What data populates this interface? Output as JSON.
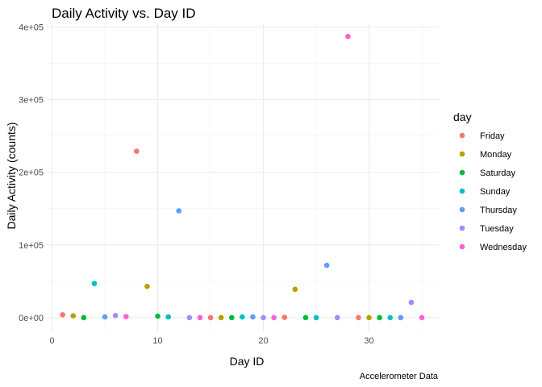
{
  "chart_data": {
    "type": "scatter",
    "title": "Daily Activity vs. Day ID",
    "xlabel": "Day ID",
    "ylabel": "Daily Activity (counts)",
    "caption": "Accelerometer Data",
    "legend_title": "day",
    "legend_position": "right",
    "xlim": [
      -0.5,
      36.6
    ],
    "ylim": [
      -20000,
      405000
    ],
    "x_ticks": [
      0,
      10,
      20,
      30
    ],
    "x_tick_labels": [
      "0",
      "10",
      "20",
      "30"
    ],
    "y_ticks": [
      0,
      100000,
      200000,
      300000,
      400000
    ],
    "y_tick_labels": [
      "0e+00",
      "1e+05",
      "2e+05",
      "3e+05",
      "4e+05"
    ],
    "grid": true,
    "series": [
      {
        "name": "Friday",
        "color": "#F8766D",
        "points": [
          [
            1,
            4000
          ],
          [
            8,
            229000
          ],
          [
            15,
            0
          ],
          [
            22,
            500
          ],
          [
            29,
            0
          ]
        ]
      },
      {
        "name": "Monday",
        "color": "#B79F00",
        "points": [
          [
            2,
            2500
          ],
          [
            9,
            43000
          ],
          [
            16,
            0
          ],
          [
            23,
            39000
          ],
          [
            30,
            0
          ]
        ]
      },
      {
        "name": "Saturday",
        "color": "#00BA38",
        "points": [
          [
            3,
            0
          ],
          [
            10,
            2000
          ],
          [
            17,
            0
          ],
          [
            24,
            0
          ],
          [
            31,
            0
          ]
        ]
      },
      {
        "name": "Sunday",
        "color": "#00BFC4",
        "points": [
          [
            4,
            47000
          ],
          [
            11,
            1000
          ],
          [
            18,
            1000
          ],
          [
            25,
            0
          ],
          [
            32,
            0
          ]
        ]
      },
      {
        "name": "Thursday",
        "color": "#619CFF",
        "points": [
          [
            5,
            1000
          ],
          [
            12,
            147000
          ],
          [
            19,
            1000
          ],
          [
            26,
            72000
          ],
          [
            33,
            0
          ]
        ]
      },
      {
        "name": "Tuesday",
        "color": "#A58AFF",
        "points": [
          [
            6,
            3000
          ],
          [
            13,
            0
          ],
          [
            20,
            0
          ],
          [
            27,
            0
          ],
          [
            34,
            21000
          ]
        ]
      },
      {
        "name": "Wednesday",
        "color": "#FB61D7",
        "points": [
          [
            7,
            1500
          ],
          [
            14,
            0
          ],
          [
            21,
            0
          ],
          [
            28,
            387000
          ],
          [
            35,
            0
          ]
        ]
      }
    ]
  }
}
